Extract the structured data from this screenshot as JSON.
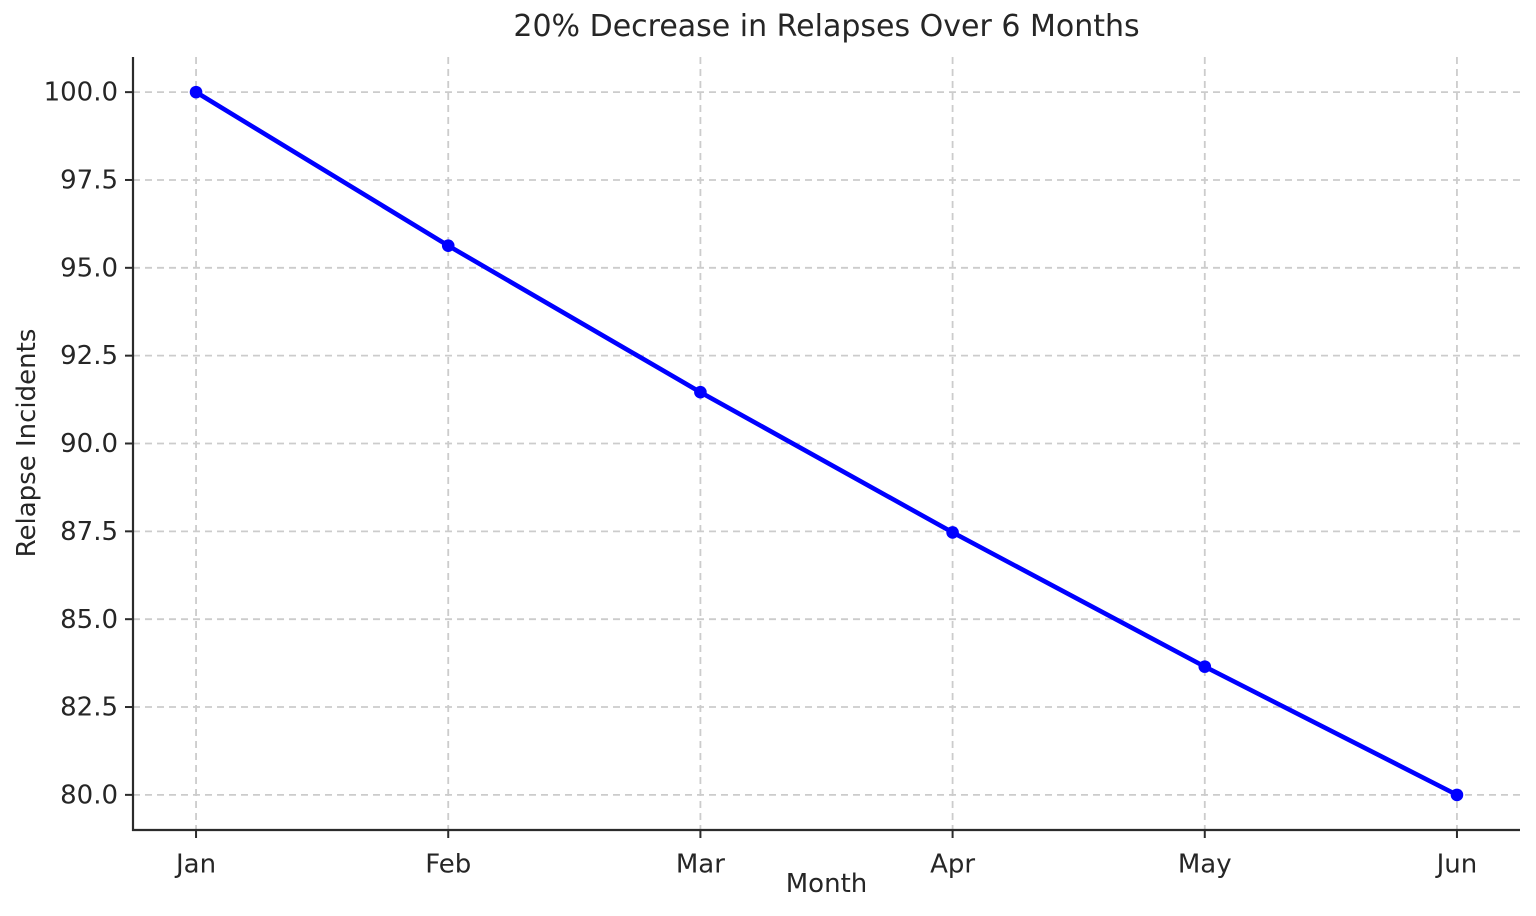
{
  "chart_data": {
    "type": "line",
    "title": "20% Decrease in Relapses Over 6 Months",
    "xlabel": "Month",
    "ylabel": "Relapse Incidents",
    "categories": [
      "Jan",
      "Feb",
      "Mar",
      "Apr",
      "May",
      "Jun"
    ],
    "series": [
      {
        "name": "Relapse Incidents",
        "values": [
          100.0,
          95.63,
          91.46,
          87.47,
          83.65,
          80.0
        ]
      }
    ],
    "yticks": [
      80.0,
      82.5,
      85.0,
      87.5,
      90.0,
      92.5,
      95.0,
      97.5,
      100.0
    ],
    "ytick_decimals": 1,
    "ylim": [
      79.0,
      101.0
    ],
    "xlim": [
      -0.25,
      5.25
    ],
    "grid": true,
    "grid_style": "dashed",
    "legend": "none",
    "marker": "circle",
    "colors": {
      "line": "#0000ff",
      "grid": "#cccccc",
      "spine": "#2b2b2b",
      "text": "#262626",
      "background": "#ffffff"
    }
  }
}
